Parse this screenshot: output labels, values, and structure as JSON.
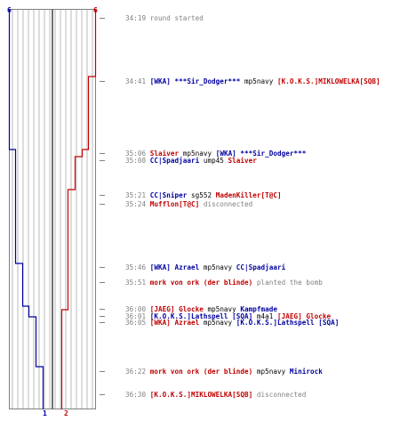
{
  "colors": {
    "team1": "#0000a0",
    "team2": "#c00000",
    "grid": "#b8b8b8",
    "frame": "#808080",
    "time": "#808080",
    "weapon": "#000000",
    "info": "#808080"
  },
  "teams": {
    "left": {
      "start_label": "6",
      "end_label": "1"
    },
    "right": {
      "start_label": "6",
      "end_label": "2"
    }
  },
  "events": [
    {
      "time": "34:19",
      "parts": [
        {
          "text": "round started",
          "kind": "info"
        }
      ]
    },
    {
      "time": "34:41",
      "parts": [
        {
          "text": "[WKA] ***Sir_Dodger***",
          "kind": "t1"
        },
        {
          "text": "mp5navy",
          "kind": "weapon"
        },
        {
          "text": "[K.O.K.S.]MIKLOWELKA[SQB]",
          "kind": "t2"
        }
      ]
    },
    {
      "time": "35:06",
      "parts": [
        {
          "text": "Slaiver",
          "kind": "t2"
        },
        {
          "text": "mp5navy",
          "kind": "weapon"
        },
        {
          "text": "[WKA] ***Sir_Dodger***",
          "kind": "t1"
        }
      ]
    },
    {
      "time": "35:08",
      "parts": [
        {
          "text": "CC|Spadjaari",
          "kind": "t1"
        },
        {
          "text": "ump45",
          "kind": "weapon"
        },
        {
          "text": "Slaiver",
          "kind": "t2"
        }
      ]
    },
    {
      "time": "35:21",
      "parts": [
        {
          "text": "CC|Sniper",
          "kind": "t1"
        },
        {
          "text": "sg552",
          "kind": "weapon"
        },
        {
          "text": "MadenKiller[T@C]",
          "kind": "t2"
        }
      ]
    },
    {
      "time": "35:24",
      "parts": [
        {
          "text": "Mufflon[T@C]",
          "kind": "t2"
        },
        {
          "text": "disconnected",
          "kind": "info"
        }
      ]
    },
    {
      "time": "35:46",
      "parts": [
        {
          "text": "[WKA] Azrael",
          "kind": "t1"
        },
        {
          "text": "mp5navy",
          "kind": "weapon"
        },
        {
          "text": "CC|Spadjaari",
          "kind": "t1"
        }
      ]
    },
    {
      "time": "35:51",
      "parts": [
        {
          "text": "mork von ork (der blinde)",
          "kind": "t2"
        },
        {
          "text": "planted the bomb",
          "kind": "info"
        }
      ]
    },
    {
      "time": "36:00",
      "parts": [
        {
          "text": "[JAEG] Glocke",
          "kind": "t2"
        },
        {
          "text": "mp5navy",
          "kind": "weapon"
        },
        {
          "text": "Kampfmade",
          "kind": "t1"
        }
      ]
    },
    {
      "time": "36:01",
      "parts": [
        {
          "text": "[K.O.K.S.]Lathspell [SQA]",
          "kind": "t1"
        },
        {
          "text": "m4a1",
          "kind": "weapon"
        },
        {
          "text": "[JAEG] Glocke",
          "kind": "t2"
        }
      ]
    },
    {
      "time": "36:05",
      "parts": [
        {
          "text": "[WKA] Azrael",
          "kind": "t2"
        },
        {
          "text": "mp5navy",
          "kind": "weapon"
        },
        {
          "text": "[K.O.K.S.]Lathspell [SQA]",
          "kind": "t1"
        }
      ]
    },
    {
      "time": "36:22",
      "parts": [
        {
          "text": "mork von ork (der blinde)",
          "kind": "t2"
        },
        {
          "text": "mp5navy",
          "kind": "weapon"
        },
        {
          "text": "Minirock",
          "kind": "t1"
        }
      ]
    },
    {
      "time": "36:30",
      "parts": [
        {
          "text": "[K.O.K.S.]MIKLOWELKA[SQB]",
          "kind": "t2"
        },
        {
          "text": "disconnected",
          "kind": "info"
        }
      ]
    }
  ]
}
